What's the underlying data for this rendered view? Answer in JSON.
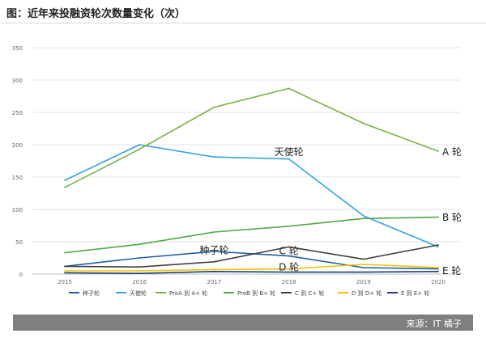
{
  "title": "图：近年来投融资轮次数量变化（次）",
  "source": "来源：IT 橘子",
  "chart_data": {
    "type": "line",
    "title": "图：近年来投融资轮次数量变化（次）",
    "xlabel": "",
    "ylabel": "",
    "x": [
      "2015",
      "2016",
      "2017",
      "2018",
      "2019",
      "2020"
    ],
    "ylim": [
      0,
      350
    ],
    "yticks": [
      0,
      50,
      100,
      150,
      200,
      250,
      300,
      350
    ],
    "grid": true,
    "legend_position": "bottom",
    "series": [
      {
        "name": "种子轮",
        "color": "#1f5fa8",
        "values": [
          12,
          25,
          35,
          28,
          10,
          8
        ]
      },
      {
        "name": "天使轮",
        "color": "#35a3dc",
        "values": [
          145,
          200,
          181,
          178,
          90,
          42
        ]
      },
      {
        "name": "PreA 到 A+ 轮",
        "color": "#78b144",
        "values": [
          134,
          193,
          258,
          287,
          233,
          190
        ]
      },
      {
        "name": "PreB 到 B+ 轮",
        "color": "#4fa84a",
        "values": [
          33,
          46,
          65,
          74,
          86,
          88
        ]
      },
      {
        "name": "C 到 C+ 轮",
        "color": "#404040",
        "values": [
          12,
          11,
          19,
          42,
          23,
          45
        ]
      },
      {
        "name": "D 到 D+ 轮",
        "color": "#f2c200",
        "values": [
          5,
          5,
          7,
          8,
          15,
          10
        ]
      },
      {
        "name": "E 到 E+ 轮",
        "color": "#1a3e78",
        "values": [
          2,
          1,
          4,
          3,
          3,
          4
        ]
      }
    ],
    "annotations": [
      {
        "text": "天使轮",
        "x": "2018",
        "y": 190
      },
      {
        "text": "A 轮",
        "x": "2020",
        "y": 190
      },
      {
        "text": "B 轮",
        "x": "2020",
        "y": 89
      },
      {
        "text": "种子轮",
        "x": "2017",
        "y": 38
      },
      {
        "text": "C 轮",
        "x": "2018",
        "y": 37
      },
      {
        "text": "D 轮",
        "x": "2018",
        "y": 12
      },
      {
        "text": "E 轮",
        "x": "2020",
        "y": 6
      }
    ]
  }
}
